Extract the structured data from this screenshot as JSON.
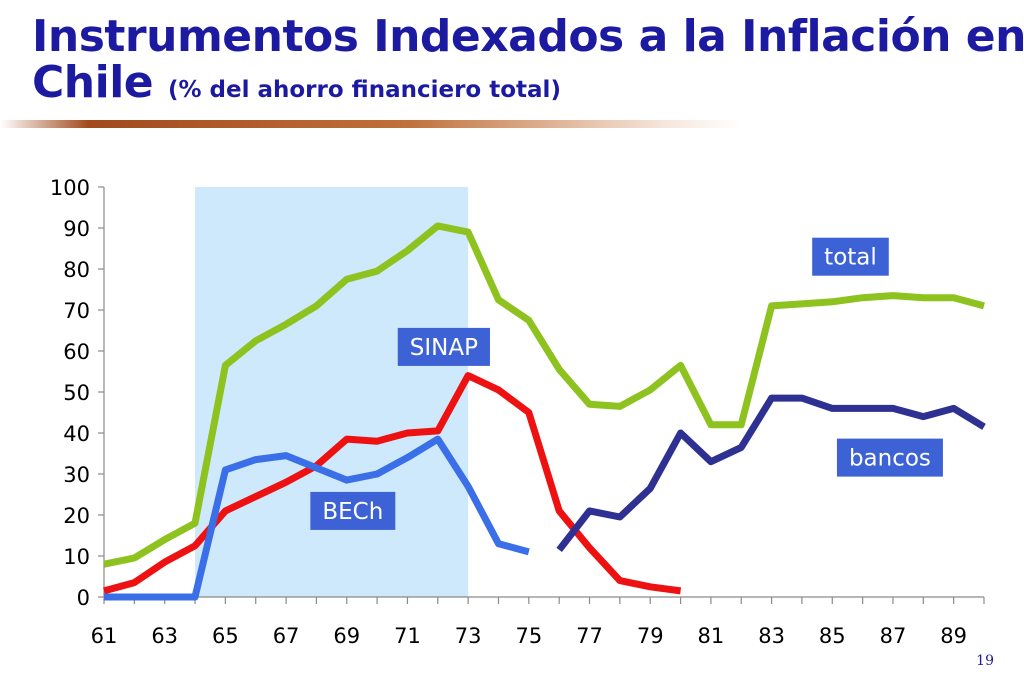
{
  "slide": {
    "title_line1": "Instrumentos Indexados a la Inflación en",
    "title_line2_main": "Chile",
    "title_line2_sub": "(% del ahorro financiero total)",
    "page_number": "19"
  },
  "chart_data": {
    "type": "line",
    "title": "Instrumentos Indexados a la Inflación en Chile (% del ahorro financiero total)",
    "xlabel": "",
    "ylabel": "",
    "xlim": [
      61,
      90
    ],
    "ylim": [
      0,
      100
    ],
    "yticks": [
      0,
      10,
      20,
      30,
      40,
      50,
      60,
      70,
      80,
      90,
      100
    ],
    "xtick_labels": [
      "61",
      "63",
      "65",
      "67",
      "69",
      "71",
      "73",
      "75",
      "77",
      "79",
      "81",
      "83",
      "85",
      "87",
      "89"
    ],
    "grid": false,
    "shaded_region": {
      "x_start": 64,
      "x_end": 73,
      "color": "#cde9fb"
    },
    "series": [
      {
        "name": "total",
        "color": "#8dc21f",
        "label_box": {
          "text": "total",
          "x": 85.6,
          "y": 83
        },
        "points": [
          [
            61,
            8
          ],
          [
            62,
            9.5
          ],
          [
            63,
            14
          ],
          [
            64,
            18
          ],
          [
            65,
            56.5
          ],
          [
            66,
            62.5
          ],
          [
            67,
            66.5
          ],
          [
            68,
            71
          ],
          [
            69,
            77.5
          ],
          [
            70,
            79.5
          ],
          [
            71,
            84.5
          ],
          [
            72,
            90.5
          ],
          [
            73,
            89
          ],
          [
            74,
            72.5
          ],
          [
            75,
            67.5
          ],
          [
            76,
            55.5
          ],
          [
            77,
            47
          ],
          [
            78,
            46.5
          ],
          [
            79,
            50.5
          ],
          [
            80,
            56.5
          ],
          [
            81,
            42
          ],
          [
            82,
            42
          ],
          [
            83,
            71
          ],
          [
            84,
            71.5
          ],
          [
            85,
            72
          ],
          [
            86,
            73
          ],
          [
            87,
            73.5
          ],
          [
            88,
            73
          ],
          [
            89,
            73
          ],
          [
            90,
            71
          ]
        ]
      },
      {
        "name": "SINAP",
        "color": "#ee1111",
        "label_box": {
          "text": "SINAP",
          "x": 72.2,
          "y": 61
        },
        "points": [
          [
            61,
            1.5
          ],
          [
            62,
            3.5
          ],
          [
            63,
            8.5
          ],
          [
            64,
            12.5
          ],
          [
            65,
            21
          ],
          [
            66,
            24.5
          ],
          [
            67,
            28
          ],
          [
            68,
            32
          ],
          [
            69,
            38.5
          ],
          [
            70,
            38
          ],
          [
            71,
            40
          ],
          [
            72,
            40.5
          ],
          [
            73,
            54
          ],
          [
            74,
            50.5
          ],
          [
            75,
            45
          ],
          [
            76,
            21
          ],
          [
            77,
            12
          ],
          [
            78,
            4
          ],
          [
            79,
            2.5
          ],
          [
            80,
            1.5
          ]
        ]
      },
      {
        "name": "BECh",
        "color": "#3b6fe8",
        "label_box": {
          "text": "BECh",
          "x": 69.2,
          "y": 21
        },
        "points": [
          [
            61,
            0
          ],
          [
            62,
            0
          ],
          [
            63,
            0
          ],
          [
            64,
            0
          ],
          [
            65,
            31
          ],
          [
            66,
            33.5
          ],
          [
            67,
            34.5
          ],
          [
            68,
            31.5
          ],
          [
            69,
            28.5
          ],
          [
            70,
            30
          ],
          [
            71,
            34
          ],
          [
            72,
            38.5
          ],
          [
            73,
            27
          ],
          [
            74,
            13
          ],
          [
            75,
            11
          ]
        ]
      },
      {
        "name": "bancos",
        "color": "#2e3192",
        "label_box": {
          "text": "bancos",
          "x": 86.9,
          "y": 34
        },
        "points": [
          [
            76,
            11.5
          ],
          [
            77,
            21
          ],
          [
            78,
            19.5
          ],
          [
            79,
            26.5
          ],
          [
            80,
            40
          ],
          [
            81,
            33
          ],
          [
            82,
            36.5
          ],
          [
            83,
            48.5
          ],
          [
            84,
            48.5
          ],
          [
            85,
            46
          ],
          [
            86,
            46
          ],
          [
            87,
            46
          ],
          [
            88,
            44
          ],
          [
            89,
            46
          ],
          [
            90,
            41.5
          ]
        ]
      }
    ]
  }
}
